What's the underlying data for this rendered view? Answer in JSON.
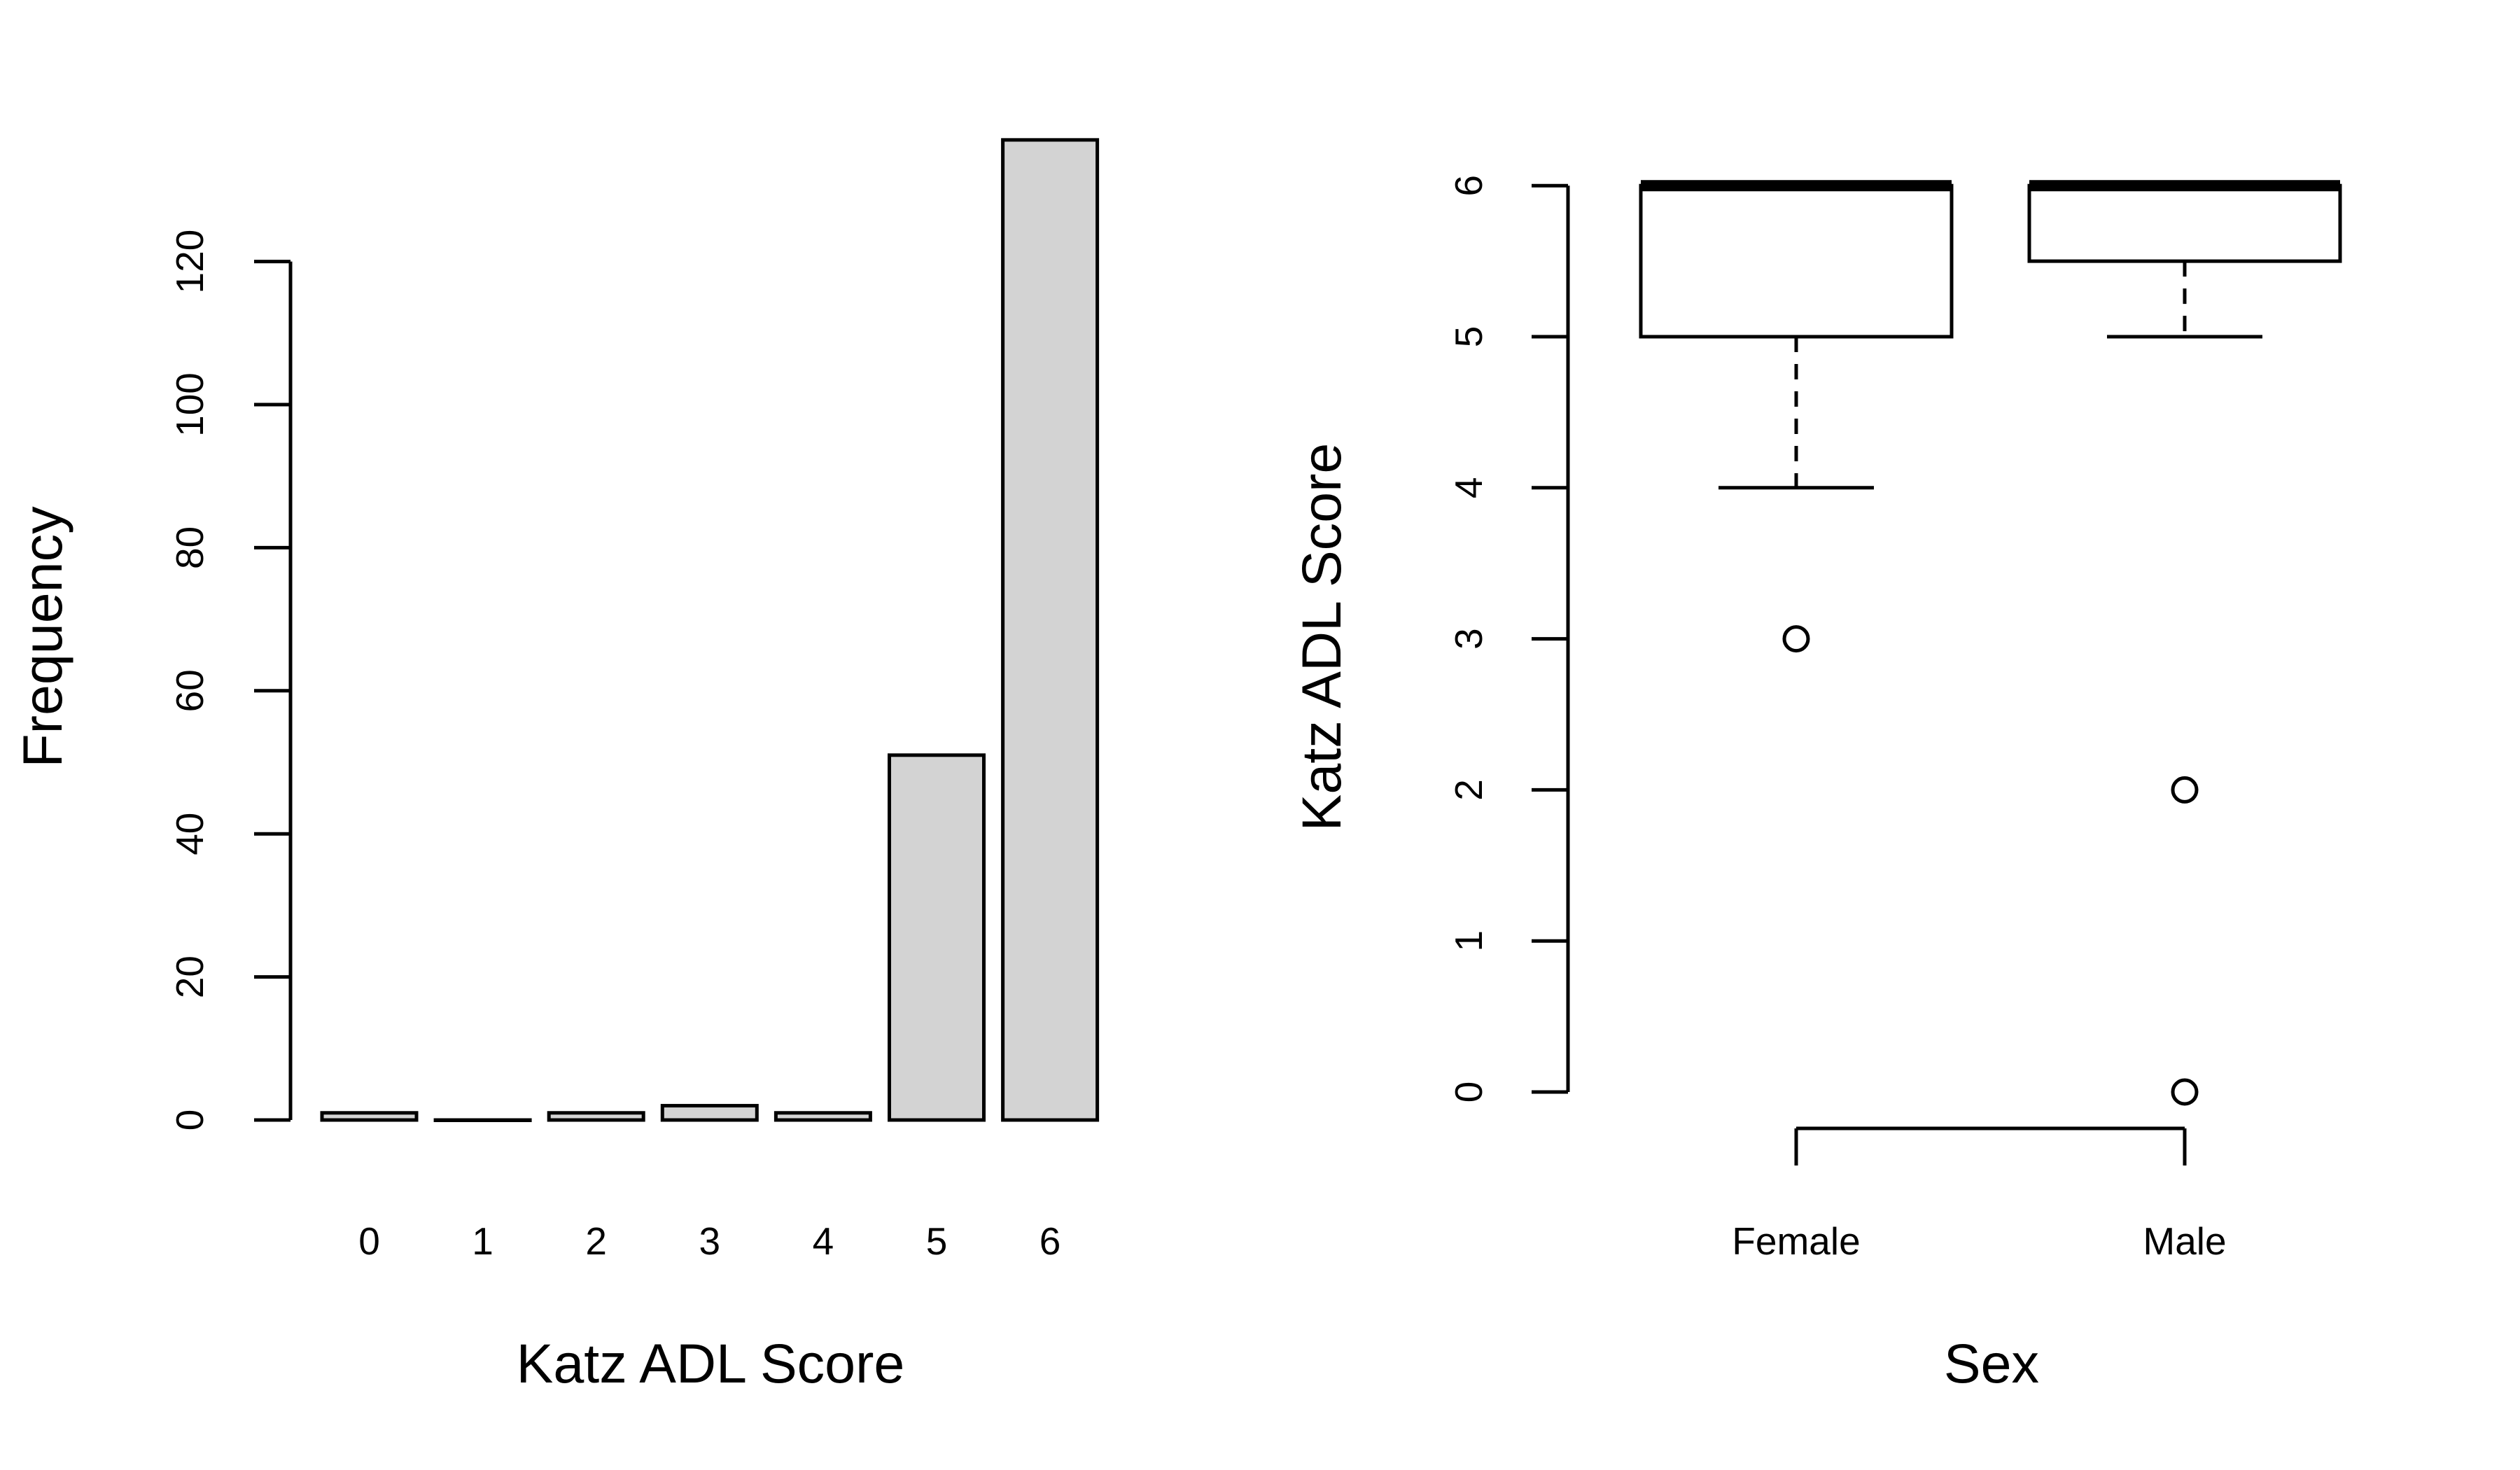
{
  "chart_data": [
    {
      "type": "bar",
      "categories": [
        "0",
        "1",
        "2",
        "3",
        "4",
        "5",
        "6"
      ],
      "values": [
        1,
        0,
        1,
        2,
        1,
        51,
        137
      ],
      "xlabel": "Katz ADL Score",
      "ylabel": "Frequency",
      "yticks": [
        "0",
        "20",
        "40",
        "60",
        "80",
        "100",
        "120"
      ],
      "ylim": [
        0,
        137
      ],
      "bar_color": "#d3d3d3",
      "grid": false,
      "legend": "none"
    },
    {
      "type": "boxplot",
      "categories": [
        "Female",
        "Male"
      ],
      "series": [
        {
          "q1": 5,
          "median": 6,
          "q3": 6,
          "whisker_low": 4,
          "whisker_high": 6,
          "outliers": [
            3
          ]
        },
        {
          "q1": 5.5,
          "median": 6,
          "q3": 6,
          "whisker_low": 5,
          "whisker_high": 6,
          "outliers": [
            2,
            0
          ]
        }
      ],
      "xlabel": "Sex",
      "ylabel": "Katz ADL Score",
      "yticks": [
        "0",
        "1",
        "2",
        "3",
        "4",
        "5",
        "6"
      ],
      "ylim": [
        0,
        6
      ],
      "grid": false,
      "legend": "none"
    }
  ]
}
